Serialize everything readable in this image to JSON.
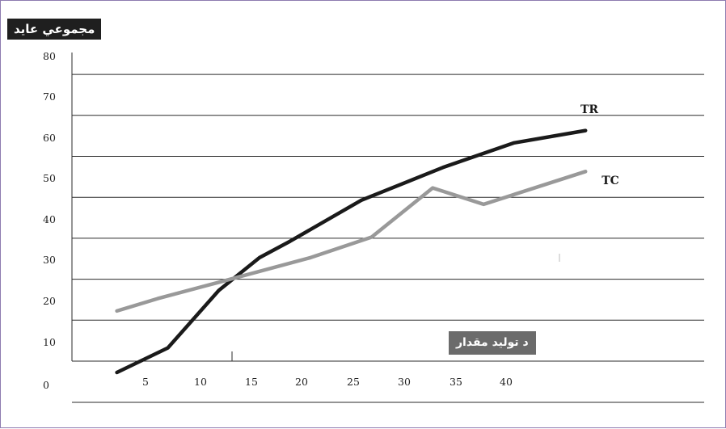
{
  "chart_data": {
    "type": "line",
    "ylabel": "مجموعي عايد",
    "xlabel": "د تولید مقدار",
    "yticks": [
      "0",
      "10",
      "20",
      "30",
      "40",
      "50",
      "60",
      "70",
      "80"
    ],
    "xticks": [
      "5",
      "10",
      "15",
      "20",
      "25",
      "30",
      "35",
      "40"
    ],
    "ylim": [
      0,
      80
    ],
    "xlim": [
      0,
      50
    ],
    "grid": true,
    "series": [
      {
        "name": "TR",
        "color": "#1a1a1a",
        "points": [
          [
            1,
            0
          ],
          [
            6,
            6
          ],
          [
            11,
            20
          ],
          [
            15,
            28
          ],
          [
            18,
            32
          ],
          [
            25,
            42
          ],
          [
            33,
            50
          ],
          [
            40,
            56
          ],
          [
            47,
            59
          ]
        ]
      },
      {
        "name": "TC",
        "color": "#999999",
        "points": [
          [
            1,
            15
          ],
          [
            5,
            18
          ],
          [
            11,
            22
          ],
          [
            20,
            28
          ],
          [
            26,
            33
          ],
          [
            32,
            45
          ],
          [
            37,
            41
          ],
          [
            47,
            49
          ]
        ]
      }
    ]
  }
}
